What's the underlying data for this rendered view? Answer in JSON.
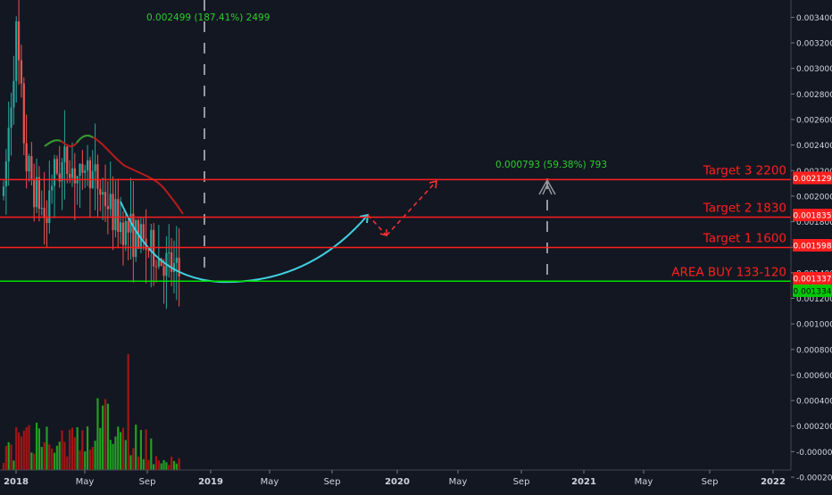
{
  "chart_data": {
    "type": "candlestick",
    "price_axis": {
      "ticks": [
        0.0034,
        0.0032,
        0.003,
        0.0028,
        0.0026,
        0.0024,
        0.0022,
        0.002,
        0.0018,
        0.0016,
        0.0014,
        0.0012,
        0.001,
        0.0008,
        0.0006,
        0.0004,
        0.0002,
        0.0,
        -0.0002
      ],
      "tick_labels": [
        "0.003400",
        "0.003200",
        "0.003000",
        "0.002800",
        "0.002600",
        "0.002400",
        "0.002200",
        "0.002000",
        "0.001800",
        "0.001600",
        "0.001400",
        "0.001200",
        "0.001000",
        "0.000800",
        "0.000600",
        "0.000400",
        "0.000200",
        "-0.000000",
        "-0.000200"
      ],
      "range": [
        -0.00022,
        0.00355
      ]
    },
    "time_axis": {
      "labels": [
        "2018",
        "May",
        "Sep",
        "2019",
        "May",
        "Sep",
        "2020",
        "May",
        "Sep",
        "2021",
        "May",
        "Sep",
        "2022"
      ],
      "bold": [
        "2018",
        "2019",
        "2020",
        "2021",
        "2022"
      ]
    },
    "price_tags": [
      {
        "value": 0.002129,
        "label": "0.002129",
        "color": "#ff1f1f"
      },
      {
        "value": 0.001835,
        "label": "0.001835",
        "color": "#ff1f1f"
      },
      {
        "value": 0.001598,
        "label": "0.001598",
        "color": "#ff1f1f"
      },
      {
        "value": 0.001337,
        "label": "0.001337",
        "color": "#ff1f1f"
      },
      {
        "value": 0.001334,
        "label": "0.001334",
        "color": "#00c805"
      }
    ],
    "horizontal_lines": [
      {
        "value": 0.002129,
        "color": "#ff1f1f",
        "text": "Target 3 2200"
      },
      {
        "value": 0.001835,
        "color": "#ff1f1f",
        "text": "Target 2 1830"
      },
      {
        "value": 0.001598,
        "color": "#ff1f1f",
        "text": "Target 1 1600"
      },
      {
        "value": 0.001334,
        "color": "#00e000",
        "text": "AREA BUY 133-120"
      }
    ],
    "measurements": [
      {
        "text": "0.002499 (187.41%) 2499",
        "color": "#2ecc2e"
      },
      {
        "text": "0.000793 (59.38%) 793",
        "color": "#2ecc2e"
      }
    ],
    "colors": {
      "background": "#131722",
      "up": "#26a69a",
      "down": "#ef5350",
      "volume_up": "#22a022",
      "volume_down": "#a31616",
      "ma": "#b71c1c",
      "ma_green": "#2e9e2e",
      "curve": "#3fd0e0",
      "arrow": "#ff3333",
      "axis_text": "#d1d4dc"
    }
  }
}
